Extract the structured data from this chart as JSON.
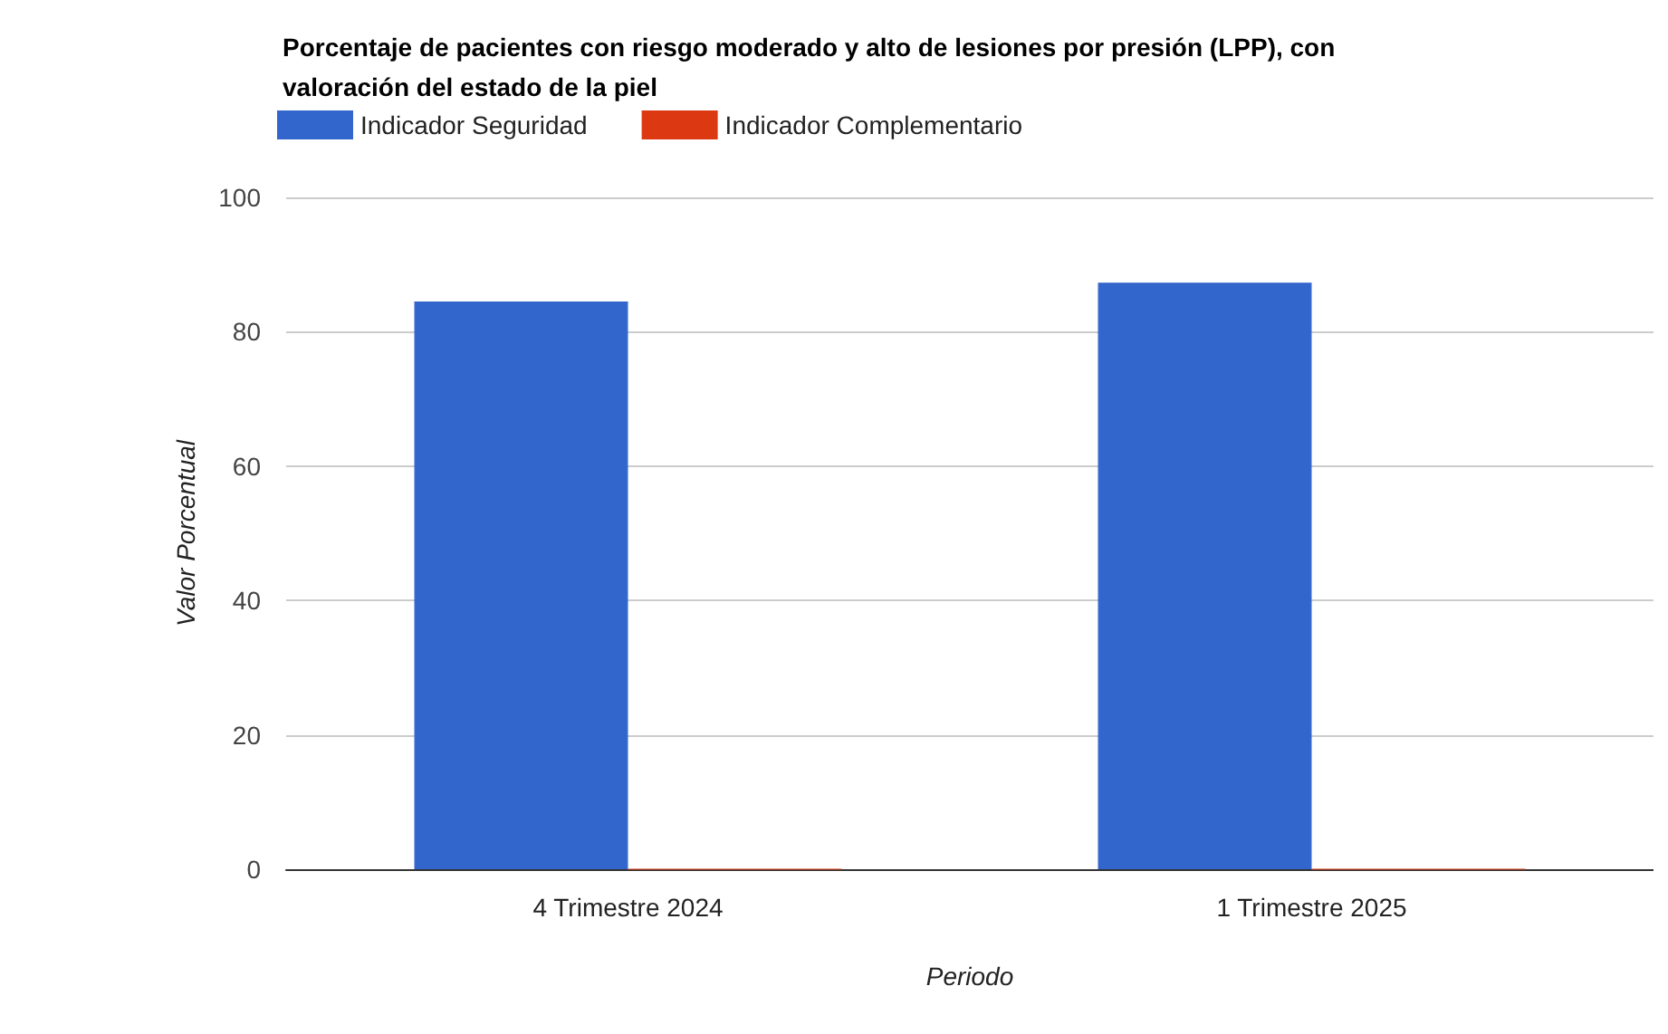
{
  "chart_data": {
    "type": "bar",
    "title": "Porcentaje de pacientes con riesgo moderado y alto de lesiones por presión (LPP), con\nvaloración del estado de la piel",
    "xlabel": "Periodo",
    "ylabel": "Valor Porcentual",
    "categories": [
      "4 Trimestre 2024",
      "1 Trimestre 2025"
    ],
    "series": [
      {
        "name": "Indicador Seguridad",
        "color": "#3366cc",
        "values": [
          84.5,
          87.3
        ]
      },
      {
        "name": "Indicador Complementario",
        "color": "#dc3912",
        "values": [
          0,
          0
        ]
      }
    ],
    "ylim": [
      0,
      100
    ],
    "yticks": [
      0,
      20,
      40,
      60,
      80,
      100
    ],
    "grid": "y",
    "legend": "top left"
  }
}
